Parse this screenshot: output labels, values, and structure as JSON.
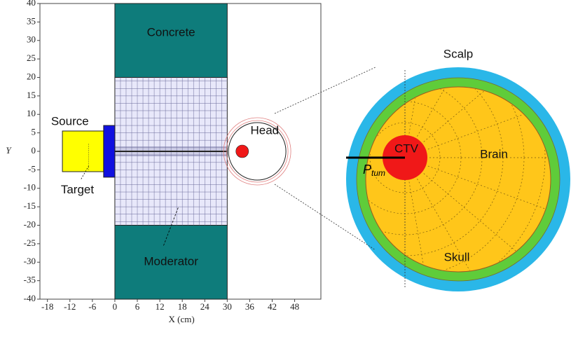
{
  "axes": {
    "xlabel": "X (cm)",
    "ylabel": "Y",
    "xlim": [
      -20,
      55
    ],
    "ylim": [
      -40,
      40
    ],
    "xticks": [
      -18,
      -12,
      -6,
      0,
      6,
      12,
      18,
      24,
      30,
      36,
      42,
      48
    ],
    "yticks": [
      -40,
      -35,
      -30,
      -25,
      -20,
      -15,
      -10,
      -5,
      0,
      5,
      10,
      15,
      20,
      25,
      30,
      35,
      40
    ]
  },
  "labels": {
    "concrete": "Concrete",
    "moderator": "Moderator",
    "source": "Source",
    "target": "Target",
    "head": "Head",
    "scalp": "Scalp",
    "skull": "Skull",
    "brain": "Brain",
    "ctv": "CTV",
    "ptum": {
      "main": "P",
      "sub": "tum"
    }
  }
}
